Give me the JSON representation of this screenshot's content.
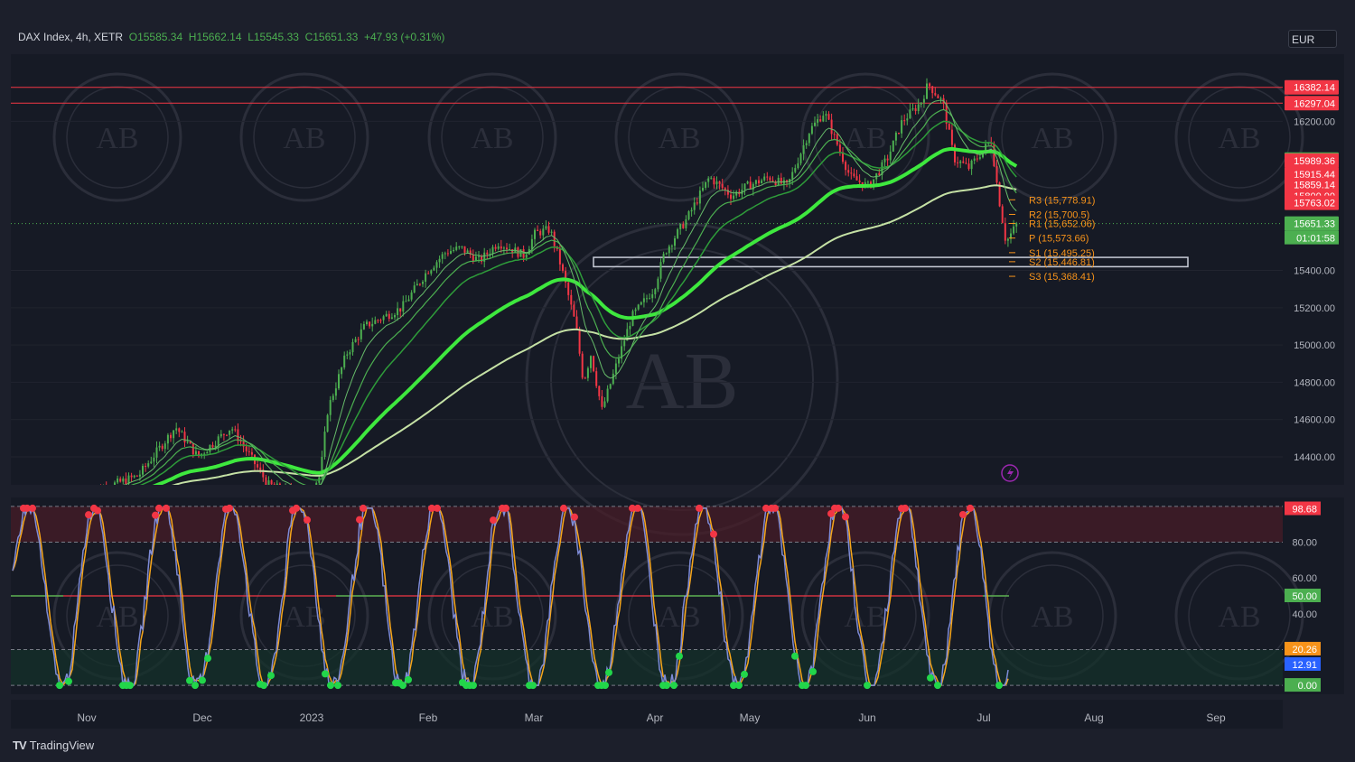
{
  "header": {
    "symbol": "DAX Index, 4h, XETR",
    "open": "O15585.34",
    "high": "H15662.14",
    "low": "L15545.33",
    "close": "C15651.33",
    "change": "+47.93 (+0.31%)",
    "currency": "EUR"
  },
  "brand": {
    "logo": "TV",
    "name": "TradingView"
  },
  "colors": {
    "background": "#1c1f2b",
    "bull": "#4caf50",
    "bear": "#f23645",
    "pivot": "#f7931a",
    "stoch_k": "#7e8bd6",
    "stoch_d": "#f7a61a"
  },
  "chart_data": [
    {
      "type": "line",
      "title": "DAX Index, 4h, XETR",
      "x_tick_labels": [
        "Nov",
        "Dec",
        "2023",
        "Feb",
        "Mar",
        "Apr",
        "May",
        "Jun",
        "Jul",
        "Aug",
        "Sep"
      ],
      "y_tick_labels": [
        "16200.00",
        "15400.00",
        "15200.00",
        "15000.00",
        "14800.00",
        "14600.00",
        "14400.00"
      ],
      "y_ticks": [
        16200,
        15400,
        15200,
        15000,
        14800,
        14600,
        14400
      ],
      "ylim": [
        14250,
        16560
      ],
      "x": [
        "2022-11-01",
        "2022-11-15",
        "2022-11-25",
        "2022-12-01",
        "2022-12-10",
        "2022-12-20",
        "2022-12-30",
        "2023-01-03",
        "2023-01-05",
        "2023-01-10",
        "2023-01-15",
        "2023-01-20",
        "2023-01-25",
        "2023-02-01",
        "2023-02-06",
        "2023-02-10",
        "2023-02-15",
        "2023-02-20",
        "2023-02-27",
        "2023-03-02",
        "2023-03-06",
        "2023-03-09",
        "2023-03-13",
        "2023-03-15",
        "2023-03-17",
        "2023-03-20",
        "2023-03-24",
        "2023-03-28",
        "2023-04-03",
        "2023-04-06",
        "2023-04-12",
        "2023-04-18",
        "2023-04-24",
        "2023-04-28",
        "2023-05-04",
        "2023-05-09",
        "2023-05-15",
        "2023-05-19",
        "2023-05-22",
        "2023-05-26",
        "2023-05-31",
        "2023-06-05",
        "2023-06-09",
        "2023-06-14",
        "2023-06-16",
        "2023-06-20",
        "2023-06-23",
        "2023-06-27",
        "2023-07-03",
        "2023-07-05",
        "2023-07-07",
        "2023-07-10"
      ],
      "series": [
        {
          "values": [
            14200,
            14300,
            14560,
            14400,
            14560,
            14250,
            14180,
            14300,
            14650,
            14950,
            15100,
            15150,
            15200,
            15400,
            15500,
            15520,
            15450,
            15550,
            15480,
            15600,
            15620,
            15420,
            15100,
            14800,
            14950,
            14650,
            14900,
            15150,
            15300,
            15500,
            15680,
            15900,
            15800,
            15850,
            15900,
            15850,
            16150,
            16250,
            16100,
            15900,
            15850,
            16000,
            16200,
            16300,
            16400,
            16300,
            16000,
            15950,
            16100,
            15800,
            15550,
            15651
          ]
        }
      ],
      "price_levels": [
        "16382.14",
        "16297.04",
        "15994.40",
        "15989.36",
        "15915.44",
        "15859.14",
        "15800.00",
        "15763.02",
        "15651.33"
      ],
      "price_values": [
        16382.14,
        16297.04,
        15994.4,
        15989.36,
        15915.44,
        15859.14,
        15800.0,
        15763.02,
        15651.33
      ],
      "countdown": "01:01:58",
      "pivots": [
        {
          "label": "R3 (15,778.91)",
          "value": 15778.91
        },
        {
          "label": "R2 (15,700.5)",
          "value": 15700.5
        },
        {
          "label": "R1 (15,652.06)",
          "value": 15652.06
        },
        {
          "label": "P (15,573.66)",
          "value": 15573.66
        },
        {
          "label": "S1 (15,495.25)",
          "value": 15495.25
        },
        {
          "label": "S2 (15,446.81)",
          "value": 15446.81
        },
        {
          "label": "S3 (15,368.41)",
          "value": 15368.41
        }
      ],
      "support_zone": [
        15420,
        15470
      ],
      "resistance_lines": [
        16382.14,
        16297.04
      ]
    },
    {
      "type": "line",
      "y_tick_labels": [
        "80.00",
        "60.00",
        "40.00"
      ],
      "y_ticks": [
        80,
        60,
        40
      ],
      "ylim": [
        -5,
        105
      ],
      "overbought": 80,
      "oversold": 20,
      "midline": 50,
      "level_labels": [
        "98.68",
        "50.00",
        "20.26",
        "12.91",
        "0.00"
      ],
      "level_values": [
        98.68,
        50,
        20.26,
        12.91,
        0
      ]
    }
  ]
}
